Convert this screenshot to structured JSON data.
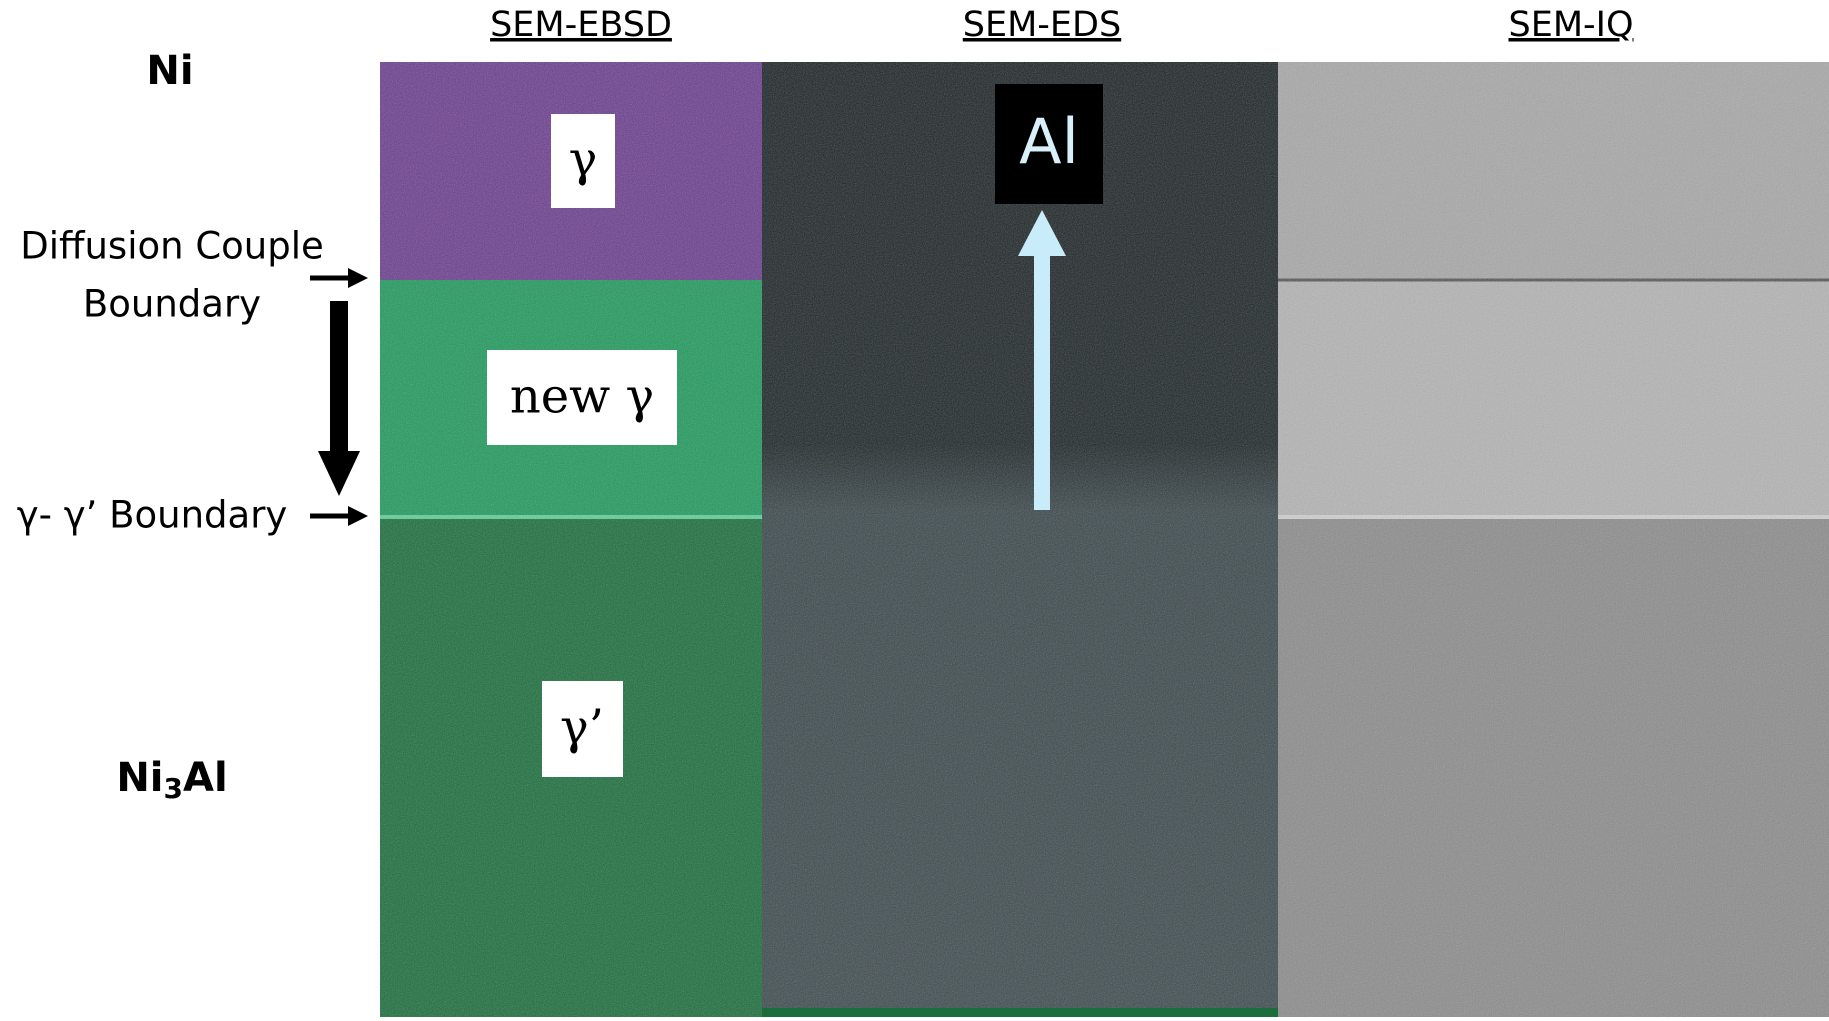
{
  "column_headers": [
    "SEM-EBSD",
    "SEM-EDS",
    "SEM-IQ"
  ],
  "side_labels": {
    "top": "Ni",
    "diffusion_boundary": [
      "Diffusion Couple",
      "Boundary"
    ],
    "gamma_boundary": "γ- γ’ Boundary",
    "bottom": [
      "Ni",
      "3",
      "Al"
    ]
  },
  "phase_labels": {
    "gamma": "γ",
    "new_gamma": "new γ",
    "gamma_prime": "γ’"
  },
  "eds_element": "Al"
}
